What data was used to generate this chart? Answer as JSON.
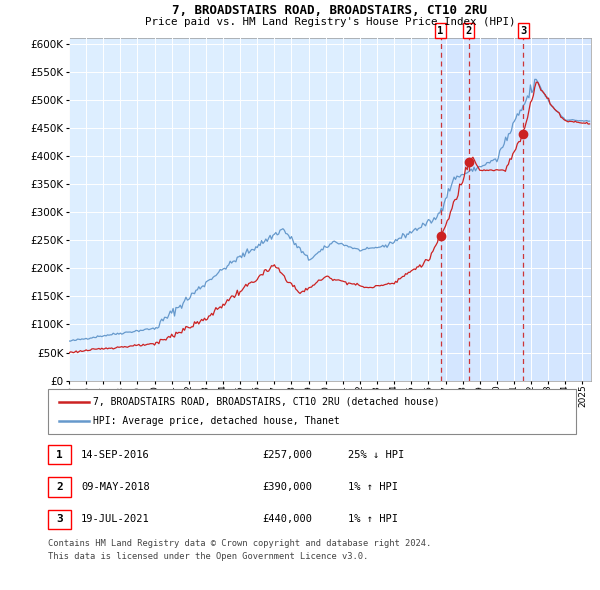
{
  "title1": "7, BROADSTAIRS ROAD, BROADSTAIRS, CT10 2RU",
  "title2": "Price paid vs. HM Land Registry's House Price Index (HPI)",
  "legend1": "7, BROADSTAIRS ROAD, BROADSTAIRS, CT10 2RU (detached house)",
  "legend2": "HPI: Average price, detached house, Thanet",
  "footer1": "Contains HM Land Registry data © Crown copyright and database right 2024.",
  "footer2": "This data is licensed under the Open Government Licence v3.0.",
  "transactions": [
    {
      "num": "1",
      "date": "14-SEP-2016",
      "price": "£257,000",
      "hpi_diff": "25% ↓ HPI",
      "x": 2016.708
    },
    {
      "num": "2",
      "date": "09-MAY-2018",
      "price": "£390,000",
      "hpi_diff": "1% ↑ HPI",
      "x": 2018.358
    },
    {
      "num": "3",
      "date": "19-JUL-2021",
      "price": "£440,000",
      "hpi_diff": "1% ↑ HPI",
      "x": 2021.542
    }
  ],
  "hpi_color": "#6699cc",
  "price_color": "#cc2222",
  "bg_color": "#ddeeff",
  "grid_color": "#ccddee",
  "xstart": 1995.0,
  "xend": 2025.5,
  "yticks": [
    0,
    50000,
    100000,
    150000,
    200000,
    250000,
    300000,
    350000,
    400000,
    450000,
    500000,
    550000,
    600000
  ],
  "transaction_prices": [
    257000,
    390000,
    440000
  ],
  "span_color": "#cce0ff",
  "span_alpha": 0.5
}
